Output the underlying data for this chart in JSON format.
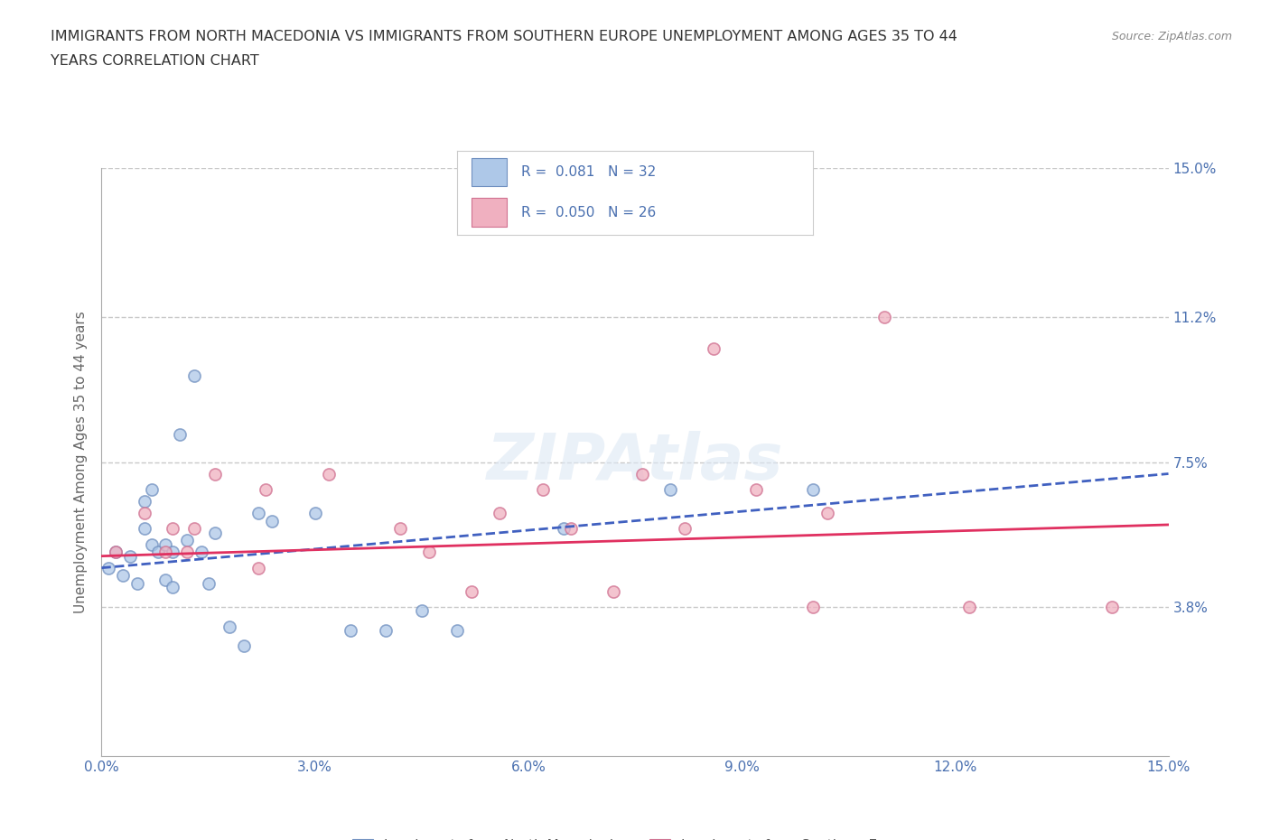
{
  "title_line1": "IMMIGRANTS FROM NORTH MACEDONIA VS IMMIGRANTS FROM SOUTHERN EUROPE UNEMPLOYMENT AMONG AGES 35 TO 44",
  "title_line2": "YEARS CORRELATION CHART",
  "source": "Source: ZipAtlas.com",
  "ylabel": "Unemployment Among Ages 35 to 44 years",
  "xlim": [
    0,
    0.15
  ],
  "ylim": [
    0,
    0.15
  ],
  "xticks": [
    0.0,
    0.03,
    0.06,
    0.09,
    0.12,
    0.15
  ],
  "xticklabels": [
    "0.0%",
    "3.0%",
    "6.0%",
    "9.0%",
    "12.0%",
    "15.0%"
  ],
  "ytick_values": [
    0.0,
    0.038,
    0.075,
    0.112,
    0.15
  ],
  "ytick_labels_left": [
    "",
    "",
    "",
    "",
    ""
  ],
  "ytick_labels_right": [
    "",
    "3.8%",
    "7.5%",
    "11.2%",
    "15.0%"
  ],
  "grid_color": "#c8c8c8",
  "background_color": "#ffffff",
  "legend_r1": "R =  0.081   N = 32",
  "legend_r2": "R =  0.050   N = 26",
  "blue_color": "#aec8e8",
  "pink_color": "#f0b0c0",
  "blue_edge_color": "#7090c0",
  "pink_edge_color": "#d07090",
  "blue_line_color": "#4060c0",
  "pink_line_color": "#e03060",
  "label_color": "#4a70b0",
  "title_color": "#333333",
  "blue_scatter_x": [
    0.001,
    0.002,
    0.003,
    0.004,
    0.005,
    0.006,
    0.006,
    0.007,
    0.007,
    0.008,
    0.009,
    0.009,
    0.01,
    0.01,
    0.011,
    0.012,
    0.013,
    0.014,
    0.015,
    0.016,
    0.018,
    0.02,
    0.022,
    0.024,
    0.03,
    0.035,
    0.04,
    0.045,
    0.05,
    0.065,
    0.08,
    0.1
  ],
  "blue_scatter_y": [
    0.048,
    0.052,
    0.046,
    0.051,
    0.044,
    0.058,
    0.065,
    0.054,
    0.068,
    0.052,
    0.045,
    0.054,
    0.043,
    0.052,
    0.082,
    0.055,
    0.097,
    0.052,
    0.044,
    0.057,
    0.033,
    0.028,
    0.062,
    0.06,
    0.062,
    0.032,
    0.032,
    0.037,
    0.032,
    0.058,
    0.068,
    0.068
  ],
  "pink_scatter_x": [
    0.002,
    0.006,
    0.009,
    0.01,
    0.012,
    0.013,
    0.016,
    0.022,
    0.023,
    0.032,
    0.042,
    0.046,
    0.052,
    0.056,
    0.062,
    0.066,
    0.072,
    0.076,
    0.082,
    0.086,
    0.092,
    0.1,
    0.102,
    0.11,
    0.122,
    0.142
  ],
  "pink_scatter_y": [
    0.052,
    0.062,
    0.052,
    0.058,
    0.052,
    0.058,
    0.072,
    0.048,
    0.068,
    0.072,
    0.058,
    0.052,
    0.042,
    0.062,
    0.068,
    0.058,
    0.042,
    0.072,
    0.058,
    0.104,
    0.068,
    0.038,
    0.062,
    0.112,
    0.038,
    0.038
  ],
  "blue_trend_x": [
    0.0,
    0.15
  ],
  "blue_trend_y": [
    0.048,
    0.072
  ],
  "pink_trend_x": [
    0.0,
    0.15
  ],
  "pink_trend_y": [
    0.051,
    0.059
  ],
  "legend_label_blue": "Immigrants from North Macedonia",
  "legend_label_pink": "Immigrants from Southern Europe"
}
